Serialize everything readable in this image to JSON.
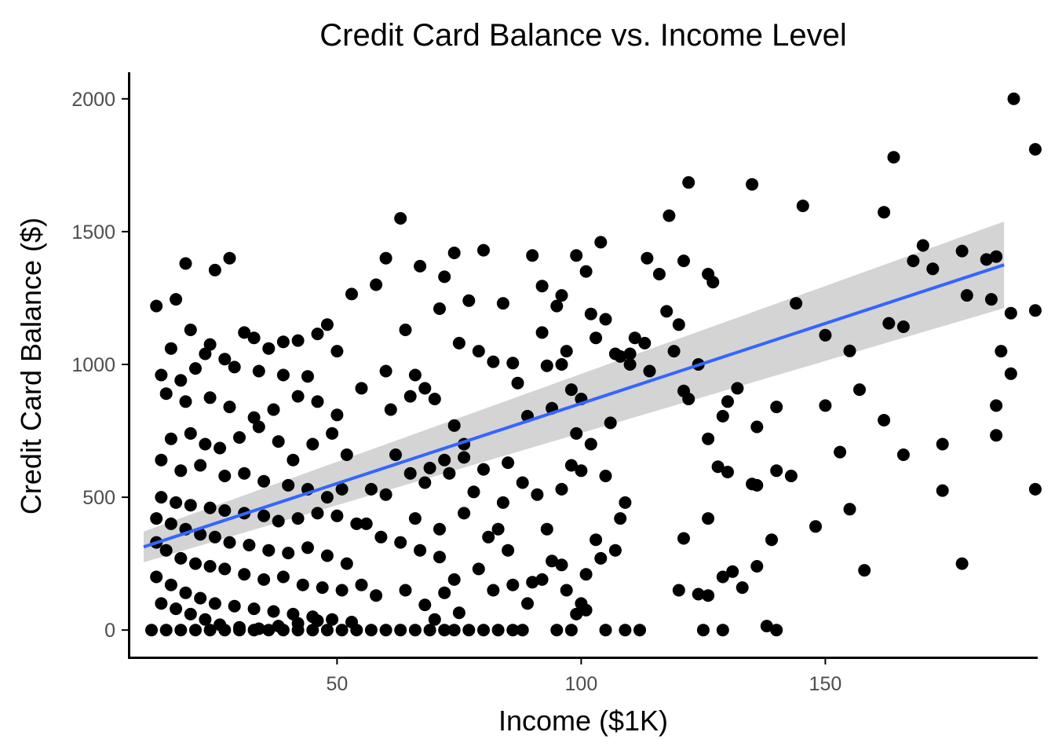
{
  "chart_data": {
    "type": "scatter",
    "title": "Credit Card Balance vs. Income Level",
    "xlabel": "Income ($1K)",
    "ylabel": "Credit Card Balance ($)",
    "xlim": [
      7.5,
      193.5
    ],
    "ylim": [
      -100,
      2100
    ],
    "x_ticks": [
      50,
      100,
      150
    ],
    "y_ticks": [
      0,
      500,
      1000,
      1500,
      2000
    ],
    "grid": false,
    "legend": "none",
    "colors": {
      "points": "#000000",
      "fit_line": "#3366ff",
      "confidence_band": "#cccccc",
      "axis": "#000000",
      "tick_text": "#4d4d4d"
    },
    "fit": {
      "method": "linear",
      "x": [
        10.4,
        186.6
      ],
      "y": [
        313,
        1375
      ],
      "ci_lower": [
        255,
        1212
      ],
      "ci_upper": [
        371,
        1538
      ]
    },
    "points": [
      [
        188.6,
        2000
      ],
      [
        193.0,
        1810
      ],
      [
        164.0,
        1780
      ],
      [
        122.0,
        1685
      ],
      [
        135.0,
        1678
      ],
      [
        145.4,
        1597
      ],
      [
        162.0,
        1573
      ],
      [
        170.0,
        1448
      ],
      [
        185.0,
        1406
      ],
      [
        178.0,
        1427
      ],
      [
        183.0,
        1395
      ],
      [
        168.0,
        1390
      ],
      [
        193.0,
        1203
      ],
      [
        188.0,
        1193
      ],
      [
        172.0,
        1360
      ],
      [
        179.0,
        1260
      ],
      [
        184.0,
        1245
      ],
      [
        144.0,
        1230
      ],
      [
        163.0,
        1155
      ],
      [
        166.0,
        1142
      ],
      [
        150.0,
        1110
      ],
      [
        155.0,
        1051
      ],
      [
        186.0,
        1050
      ],
      [
        188.0,
        965
      ],
      [
        157.0,
        905
      ],
      [
        150.0,
        845
      ],
      [
        185.0,
        845
      ],
      [
        140.0,
        840
      ],
      [
        162.0,
        790
      ],
      [
        174.0,
        700
      ],
      [
        153.0,
        670
      ],
      [
        166.0,
        660
      ],
      [
        185.0,
        733
      ],
      [
        143.0,
        580
      ],
      [
        174.0,
        525
      ],
      [
        148.0,
        390
      ],
      [
        155.0,
        455
      ],
      [
        158.0,
        225
      ],
      [
        193.0,
        530
      ],
      [
        178.0,
        250
      ],
      [
        121.0,
        1390
      ],
      [
        118.0,
        1560
      ],
      [
        113.5,
        1400
      ],
      [
        116.0,
        1340
      ],
      [
        119.0,
        1050
      ],
      [
        117.5,
        1200
      ],
      [
        120.0,
        1150
      ],
      [
        126.0,
        1340
      ],
      [
        127.0,
        1310
      ],
      [
        124.0,
        1000
      ],
      [
        111.0,
        1100
      ],
      [
        110.0,
        1040
      ],
      [
        113.0,
        1080
      ],
      [
        114.0,
        975
      ],
      [
        121.0,
        900
      ],
      [
        122.0,
        870
      ],
      [
        130.0,
        860
      ],
      [
        126.0,
        720
      ],
      [
        128.0,
        615
      ],
      [
        132.0,
        910
      ],
      [
        129.0,
        805
      ],
      [
        136.0,
        765
      ],
      [
        140.0,
        600
      ],
      [
        136.0,
        545
      ],
      [
        130.0,
        595
      ],
      [
        135.0,
        550
      ],
      [
        139.0,
        340
      ],
      [
        126.0,
        420
      ],
      [
        121.0,
        345
      ],
      [
        120.0,
        150
      ],
      [
        124.0,
        135
      ],
      [
        126.0,
        130
      ],
      [
        129.0,
        200
      ],
      [
        131.0,
        220
      ],
      [
        140.0,
        0
      ],
      [
        125.0,
        0
      ],
      [
        129.0,
        0
      ],
      [
        138.0,
        15
      ],
      [
        136.0,
        240
      ],
      [
        133.0,
        160
      ],
      [
        90.0,
        1410
      ],
      [
        92.0,
        1295
      ],
      [
        96.0,
        1260
      ],
      [
        102.0,
        1190
      ],
      [
        99.0,
        1410
      ],
      [
        101.0,
        1350
      ],
      [
        104.0,
        1460
      ],
      [
        95.0,
        1220
      ],
      [
        97.0,
        1050
      ],
      [
        108.0,
        1030
      ],
      [
        103.0,
        1100
      ],
      [
        107.0,
        1040
      ],
      [
        92.0,
        1120
      ],
      [
        93.0,
        995
      ],
      [
        96.0,
        1000
      ],
      [
        105.0,
        1170
      ],
      [
        110.0,
        1000
      ],
      [
        98.0,
        905
      ],
      [
        94.0,
        835
      ],
      [
        89.0,
        805
      ],
      [
        100.0,
        870
      ],
      [
        102.0,
        700
      ],
      [
        106.0,
        780
      ],
      [
        99.0,
        740
      ],
      [
        98.0,
        620
      ],
      [
        88.0,
        555
      ],
      [
        96.0,
        530
      ],
      [
        91.0,
        510
      ],
      [
        100.0,
        600
      ],
      [
        105.0,
        580
      ],
      [
        109.0,
        480
      ],
      [
        107.0,
        300
      ],
      [
        103.0,
        340
      ],
      [
        96.0,
        245
      ],
      [
        92.0,
        190
      ],
      [
        94.0,
        260
      ],
      [
        101.0,
        210
      ],
      [
        104.0,
        270
      ],
      [
        97.0,
        150
      ],
      [
        100.0,
        100
      ],
      [
        101.0,
        75
      ],
      [
        99.0,
        60
      ],
      [
        95.0,
        0
      ],
      [
        98.0,
        0
      ],
      [
        105.0,
        0
      ],
      [
        109.0,
        0
      ],
      [
        112.0,
        0
      ],
      [
        90.0,
        180
      ],
      [
        93.0,
        380
      ],
      [
        108.0,
        420
      ],
      [
        63.0,
        1550
      ],
      [
        60.0,
        1400
      ],
      [
        74.0,
        1420
      ],
      [
        67.0,
        1370
      ],
      [
        53.0,
        1265
      ],
      [
        58.0,
        1300
      ],
      [
        80.0,
        1430
      ],
      [
        72.0,
        1330
      ],
      [
        77.0,
        1240
      ],
      [
        84.0,
        1230
      ],
      [
        64.0,
        1130
      ],
      [
        71.0,
        1210
      ],
      [
        82.0,
        1010
      ],
      [
        86.0,
        1005
      ],
      [
        75.0,
        1080
      ],
      [
        79.0,
        1050
      ],
      [
        87.0,
        930
      ],
      [
        66.0,
        960
      ],
      [
        68.0,
        910
      ],
      [
        60.0,
        975
      ],
      [
        55.0,
        910
      ],
      [
        70.0,
        870
      ],
      [
        61.0,
        830
      ],
      [
        65.0,
        880
      ],
      [
        76.0,
        700
      ],
      [
        74.0,
        770
      ],
      [
        85.0,
        630
      ],
      [
        72.0,
        640
      ],
      [
        76.0,
        650
      ],
      [
        80.0,
        605
      ],
      [
        62.0,
        660
      ],
      [
        65.0,
        590
      ],
      [
        68.0,
        555
      ],
      [
        57.0,
        530
      ],
      [
        60.0,
        510
      ],
      [
        69.0,
        610
      ],
      [
        73.0,
        590
      ],
      [
        78.0,
        520
      ],
      [
        84.0,
        480
      ],
      [
        66.0,
        420
      ],
      [
        71.0,
        380
      ],
      [
        76.0,
        440
      ],
      [
        81.0,
        350
      ],
      [
        83.0,
        380
      ],
      [
        85.0,
        300
      ],
      [
        56.0,
        400
      ],
      [
        59.0,
        350
      ],
      [
        63.0,
        330
      ],
      [
        67.0,
        300
      ],
      [
        71.0,
        275
      ],
      [
        74.0,
        190
      ],
      [
        79.0,
        230
      ],
      [
        82.0,
        150
      ],
      [
        86.0,
        170
      ],
      [
        89.0,
        100
      ],
      [
        55.0,
        170
      ],
      [
        58.0,
        130
      ],
      [
        64.0,
        150
      ],
      [
        68.0,
        95
      ],
      [
        72.0,
        140
      ],
      [
        60.0,
        0
      ],
      [
        63.0,
        0
      ],
      [
        66.0,
        0
      ],
      [
        69.0,
        0
      ],
      [
        72.0,
        0
      ],
      [
        74.0,
        0
      ],
      [
        77.0,
        0
      ],
      [
        80.0,
        0
      ],
      [
        83.0,
        0
      ],
      [
        86.0,
        0
      ],
      [
        88.0,
        0
      ],
      [
        70.0,
        40
      ],
      [
        75.0,
        65
      ],
      [
        13.0,
        1220
      ],
      [
        19.0,
        1380
      ],
      [
        17.0,
        1245
      ],
      [
        28.0,
        1400
      ],
      [
        25.0,
        1355
      ],
      [
        20.0,
        1130
      ],
      [
        24.0,
        1075
      ],
      [
        16.0,
        1060
      ],
      [
        33.0,
        1100
      ],
      [
        31.0,
        1120
      ],
      [
        36.0,
        1060
      ],
      [
        42.0,
        1090
      ],
      [
        39.0,
        1085
      ],
      [
        46.0,
        1115
      ],
      [
        48.0,
        1150
      ],
      [
        50.0,
        1050
      ],
      [
        23.0,
        1040
      ],
      [
        27.0,
        1020
      ],
      [
        14.0,
        960
      ],
      [
        18.0,
        940
      ],
      [
        21.0,
        985
      ],
      [
        29.0,
        990
      ],
      [
        34.0,
        975
      ],
      [
        39.0,
        960
      ],
      [
        44.0,
        955
      ],
      [
        15.0,
        890
      ],
      [
        19.0,
        860
      ],
      [
        24.0,
        875
      ],
      [
        28.0,
        840
      ],
      [
        33.0,
        800
      ],
      [
        37.0,
        830
      ],
      [
        42.0,
        880
      ],
      [
        46.0,
        860
      ],
      [
        50.0,
        810
      ],
      [
        16.0,
        720
      ],
      [
        20.0,
        740
      ],
      [
        23.0,
        700
      ],
      [
        26.0,
        685
      ],
      [
        30.0,
        725
      ],
      [
        34.0,
        765
      ],
      [
        38.0,
        710
      ],
      [
        41.0,
        640
      ],
      [
        45.0,
        700
      ],
      [
        49.0,
        740
      ],
      [
        52.0,
        660
      ],
      [
        14.0,
        640
      ],
      [
        18.0,
        600
      ],
      [
        22.0,
        620
      ],
      [
        27.0,
        580
      ],
      [
        31.0,
        590
      ],
      [
        35.0,
        560
      ],
      [
        40.0,
        545
      ],
      [
        44.0,
        530
      ],
      [
        48.0,
        500
      ],
      [
        51.0,
        530
      ],
      [
        14.0,
        500
      ],
      [
        17.0,
        480
      ],
      [
        20.0,
        470
      ],
      [
        24.0,
        460
      ],
      [
        27.0,
        450
      ],
      [
        31.0,
        440
      ],
      [
        35.0,
        430
      ],
      [
        38.0,
        410
      ],
      [
        42.0,
        420
      ],
      [
        46.0,
        440
      ],
      [
        50.0,
        430
      ],
      [
        54.0,
        400
      ],
      [
        13.0,
        420
      ],
      [
        16.0,
        400
      ],
      [
        19.0,
        380
      ],
      [
        22.0,
        360
      ],
      [
        25.0,
        350
      ],
      [
        28.0,
        330
      ],
      [
        32.0,
        320
      ],
      [
        36.0,
        300
      ],
      [
        40.0,
        290
      ],
      [
        44.0,
        310
      ],
      [
        48.0,
        280
      ],
      [
        52.0,
        250
      ],
      [
        13.0,
        330
      ],
      [
        15.0,
        300
      ],
      [
        18.0,
        270
      ],
      [
        21.0,
        250
      ],
      [
        24.0,
        240
      ],
      [
        27.0,
        230
      ],
      [
        31.0,
        210
      ],
      [
        35.0,
        190
      ],
      [
        39.0,
        200
      ],
      [
        43.0,
        170
      ],
      [
        47.0,
        160
      ],
      [
        51.0,
        150
      ],
      [
        13.0,
        200
      ],
      [
        16.0,
        170
      ],
      [
        19.0,
        140
      ],
      [
        22.0,
        120
      ],
      [
        25.0,
        100
      ],
      [
        29.0,
        90
      ],
      [
        33.0,
        80
      ],
      [
        37.0,
        70
      ],
      [
        41.0,
        60
      ],
      [
        45.0,
        50
      ],
      [
        49.0,
        40
      ],
      [
        53.0,
        30
      ],
      [
        14.0,
        100
      ],
      [
        17.0,
        80
      ],
      [
        20.0,
        60
      ],
      [
        23.0,
        40
      ],
      [
        26.0,
        20
      ],
      [
        30.0,
        10
      ],
      [
        34.0,
        5
      ],
      [
        38.0,
        15
      ],
      [
        42.0,
        25
      ],
      [
        46.0,
        35
      ],
      [
        12.0,
        0
      ],
      [
        15.0,
        0
      ],
      [
        18.0,
        0
      ],
      [
        21.0,
        0
      ],
      [
        24.0,
        0
      ],
      [
        27.0,
        0
      ],
      [
        30.0,
        0
      ],
      [
        33.0,
        0
      ],
      [
        36.0,
        0
      ],
      [
        39.0,
        0
      ],
      [
        42.0,
        0
      ],
      [
        45.0,
        0
      ],
      [
        48.0,
        0
      ],
      [
        51.0,
        0
      ],
      [
        54.0,
        0
      ],
      [
        57.0,
        0
      ]
    ]
  }
}
